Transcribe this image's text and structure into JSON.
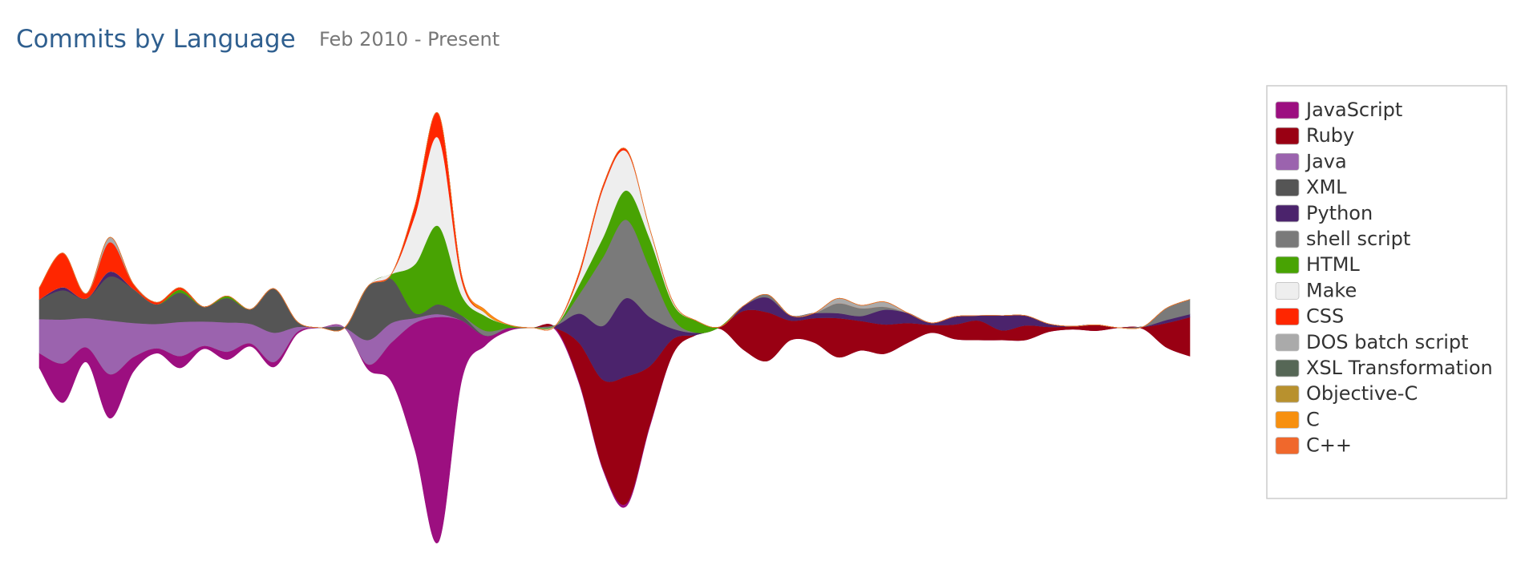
{
  "chart_data": {
    "type": "streamgraph",
    "title": "Commits by Language",
    "subtitle": "Feb 2010 - Present",
    "series": [
      {
        "name": "JavaScript",
        "color": "#9c0f80",
        "values": [
          15,
          40,
          15,
          45,
          15,
          5,
          12,
          3,
          8,
          3,
          5,
          2,
          0,
          0,
          5,
          40,
          130,
          230,
          60,
          10,
          3,
          0,
          2,
          2,
          2,
          3,
          2,
          0,
          0,
          0,
          0,
          0,
          0,
          0,
          0,
          0,
          0,
          0,
          0,
          0,
          0,
          0,
          0,
          0,
          0,
          0,
          0,
          0,
          0,
          0
        ]
      },
      {
        "name": "Ruby",
        "color": "#990013",
        "values": [
          0,
          0,
          0,
          0,
          0,
          0,
          0,
          0,
          0,
          0,
          0,
          0,
          0,
          0,
          0,
          0,
          0,
          0,
          0,
          0,
          0,
          0,
          0,
          40,
          90,
          130,
          60,
          15,
          0,
          2,
          40,
          50,
          20,
          25,
          40,
          30,
          30,
          20,
          8,
          15,
          20,
          10,
          15,
          5,
          3,
          6,
          0,
          2,
          25,
          40
        ]
      },
      {
        "name": "Java",
        "color": "#9b63ae",
        "values": [
          35,
          45,
          30,
          55,
          35,
          25,
          35,
          25,
          30,
          20,
          30,
          5,
          0,
          0,
          25,
          20,
          5,
          3,
          0,
          0,
          0,
          0,
          0,
          0,
          0,
          0,
          0,
          0,
          0,
          0,
          0,
          0,
          0,
          0,
          0,
          0,
          0,
          0,
          0,
          0,
          0,
          0,
          0,
          0,
          0,
          0,
          0,
          0,
          0,
          0
        ]
      },
      {
        "name": "XML",
        "color": "#555555",
        "values": [
          20,
          30,
          20,
          45,
          35,
          20,
          30,
          15,
          25,
          15,
          45,
          5,
          0,
          0,
          55,
          45,
          5,
          10,
          5,
          0,
          0,
          0,
          0,
          0,
          0,
          0,
          0,
          0,
          0,
          0,
          0,
          0,
          0,
          0,
          0,
          0,
          0,
          0,
          0,
          0,
          0,
          0,
          0,
          0,
          0,
          0,
          0,
          0,
          0,
          0
        ]
      },
      {
        "name": "Python",
        "color": "#4b236c",
        "values": [
          0,
          3,
          0,
          5,
          0,
          0,
          0,
          0,
          0,
          0,
          0,
          0,
          0,
          0,
          0,
          0,
          0,
          0,
          0,
          0,
          0,
          0,
          3,
          30,
          55,
          80,
          50,
          10,
          2,
          0,
          5,
          15,
          5,
          5,
          5,
          5,
          15,
          10,
          2,
          8,
          5,
          15,
          10,
          3,
          0,
          0,
          0,
          0,
          3,
          3
        ]
      },
      {
        "name": "shell script",
        "color": "#7a7a7a",
        "values": [
          0,
          0,
          0,
          0,
          0,
          0,
          0,
          0,
          0,
          0,
          0,
          0,
          0,
          0,
          0,
          0,
          0,
          0,
          0,
          5,
          0,
          0,
          0,
          20,
          70,
          80,
          50,
          10,
          0,
          0,
          0,
          3,
          0,
          0,
          10,
          8,
          3,
          0,
          0,
          0,
          0,
          0,
          0,
          0,
          0,
          0,
          0,
          0,
          12,
          15
        ]
      },
      {
        "name": "HTML",
        "color": "#48a303",
        "values": [
          0,
          0,
          0,
          0,
          0,
          0,
          3,
          0,
          2,
          0,
          0,
          0,
          0,
          0,
          0,
          5,
          50,
          80,
          20,
          15,
          3,
          0,
          0,
          10,
          20,
          30,
          30,
          15,
          12,
          0,
          0,
          0,
          0,
          0,
          0,
          0,
          0,
          0,
          0,
          0,
          0,
          0,
          0,
          0,
          0,
          0,
          0,
          0,
          0,
          0
        ]
      },
      {
        "name": "Make",
        "color": "#eeeeee",
        "values": [
          0,
          0,
          0,
          0,
          0,
          0,
          0,
          0,
          0,
          0,
          0,
          0,
          0,
          0,
          0,
          0,
          50,
          90,
          15,
          3,
          0,
          0,
          0,
          10,
          50,
          40,
          10,
          2,
          0,
          0,
          0,
          0,
          0,
          0,
          0,
          0,
          0,
          0,
          0,
          0,
          0,
          0,
          0,
          0,
          0,
          0,
          0,
          0,
          0,
          0
        ]
      },
      {
        "name": "CSS",
        "color": "#ff2600",
        "values": [
          12,
          35,
          5,
          30,
          5,
          2,
          2,
          0,
          0,
          0,
          0,
          0,
          0,
          0,
          0,
          0,
          10,
          25,
          5,
          0,
          0,
          0,
          0,
          3,
          3,
          2,
          0,
          0,
          0,
          0,
          0,
          0,
          0,
          0,
          0,
          0,
          0,
          0,
          0,
          0,
          0,
          0,
          0,
          0,
          0,
          0,
          0,
          0,
          0,
          0
        ]
      },
      {
        "name": "DOS batch script",
        "color": "#aaaaaa",
        "values": [
          0,
          0,
          0,
          5,
          0,
          0,
          0,
          0,
          0,
          0,
          0,
          0,
          0,
          0,
          0,
          0,
          0,
          0,
          0,
          0,
          0,
          0,
          0,
          0,
          0,
          0,
          0,
          0,
          0,
          0,
          0,
          0,
          0,
          0,
          5,
          3,
          5,
          0,
          0,
          0,
          0,
          0,
          0,
          0,
          0,
          0,
          0,
          0,
          0,
          0
        ]
      },
      {
        "name": "XSL Transformation",
        "color": "#566756",
        "values": [
          0,
          0,
          0,
          0,
          0,
          0,
          0,
          0,
          0,
          0,
          0,
          0,
          0,
          0,
          0,
          0,
          0,
          0,
          0,
          0,
          0,
          0,
          0,
          0,
          0,
          0,
          0,
          0,
          0,
          0,
          0,
          0,
          0,
          0,
          0,
          0,
          0,
          0,
          0,
          0,
          0,
          0,
          0,
          0,
          0,
          0,
          0,
          0,
          0,
          0
        ]
      },
      {
        "name": "Objective-C",
        "color": "#b8912e",
        "values": [
          0,
          0,
          0,
          0,
          0,
          0,
          0,
          0,
          0,
          0,
          0,
          0,
          0,
          0,
          0,
          0,
          0,
          0,
          0,
          0,
          0,
          0,
          0,
          0,
          0,
          0,
          0,
          0,
          0,
          0,
          0,
          0,
          0,
          0,
          0,
          0,
          0,
          0,
          0,
          0,
          0,
          0,
          0,
          0,
          0,
          0,
          0,
          0,
          0,
          0
        ]
      },
      {
        "name": "C",
        "color": "#f7900f",
        "values": [
          0,
          0,
          0,
          0,
          0,
          0,
          0,
          0,
          0,
          0,
          0,
          0,
          0,
          0,
          0,
          0,
          0,
          0,
          0,
          3,
          0,
          0,
          0,
          0,
          0,
          0,
          0,
          0,
          0,
          0,
          0,
          0,
          0,
          0,
          0,
          0,
          0,
          0,
          0,
          0,
          0,
          0,
          0,
          0,
          0,
          0,
          0,
          0,
          0,
          0
        ]
      },
      {
        "name": "C++",
        "color": "#f0682c",
        "values": [
          0,
          0,
          0,
          0,
          0,
          0,
          0,
          0,
          0,
          0,
          0,
          0,
          0,
          0,
          0,
          0,
          0,
          0,
          0,
          0,
          0,
          0,
          0,
          0,
          0,
          0,
          0,
          0,
          0,
          0,
          0,
          0,
          0,
          0,
          0,
          0,
          0,
          0,
          0,
          0,
          0,
          0,
          0,
          0,
          0,
          0,
          0,
          0,
          0,
          0
        ]
      }
    ]
  }
}
